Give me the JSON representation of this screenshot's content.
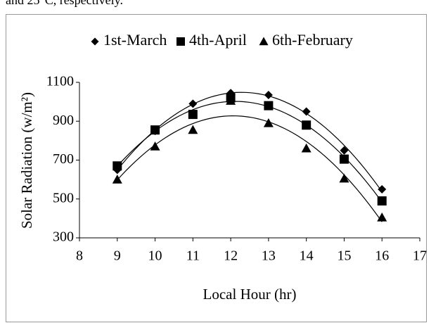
{
  "context_text": "and 25°C, respectively.",
  "chart_data": {
    "type": "scatter",
    "x_label": "Local Hour (hr)",
    "y_label": "Solar Radiation (w/m²)",
    "x": [
      9,
      10,
      11,
      12,
      13,
      14,
      15,
      16
    ],
    "series": [
      {
        "name": "1st-March",
        "color": "#000000",
        "marker": "diamond",
        "values": [
          650,
          850,
          990,
          1045,
          1035,
          950,
          750,
          550
        ]
      },
      {
        "name": "4th-April",
        "color": "#000000",
        "marker": "square",
        "values": [
          670,
          855,
          935,
          1020,
          980,
          880,
          705,
          490
        ]
      },
      {
        "name": "6th-February",
        "color": "#000000",
        "marker": "triangle",
        "values": [
          600,
          770,
          855,
          1005,
          890,
          760,
          605,
          405
        ]
      }
    ],
    "trendline": "polynomial",
    "xlim": [
      8,
      17
    ],
    "xticks": [
      8,
      9,
      10,
      11,
      12,
      13,
      14,
      15,
      16,
      17
    ],
    "ylim": [
      300,
      1100
    ],
    "yticks": [
      300,
      500,
      700,
      900,
      1100
    ],
    "grid": false,
    "legend": "top"
  }
}
